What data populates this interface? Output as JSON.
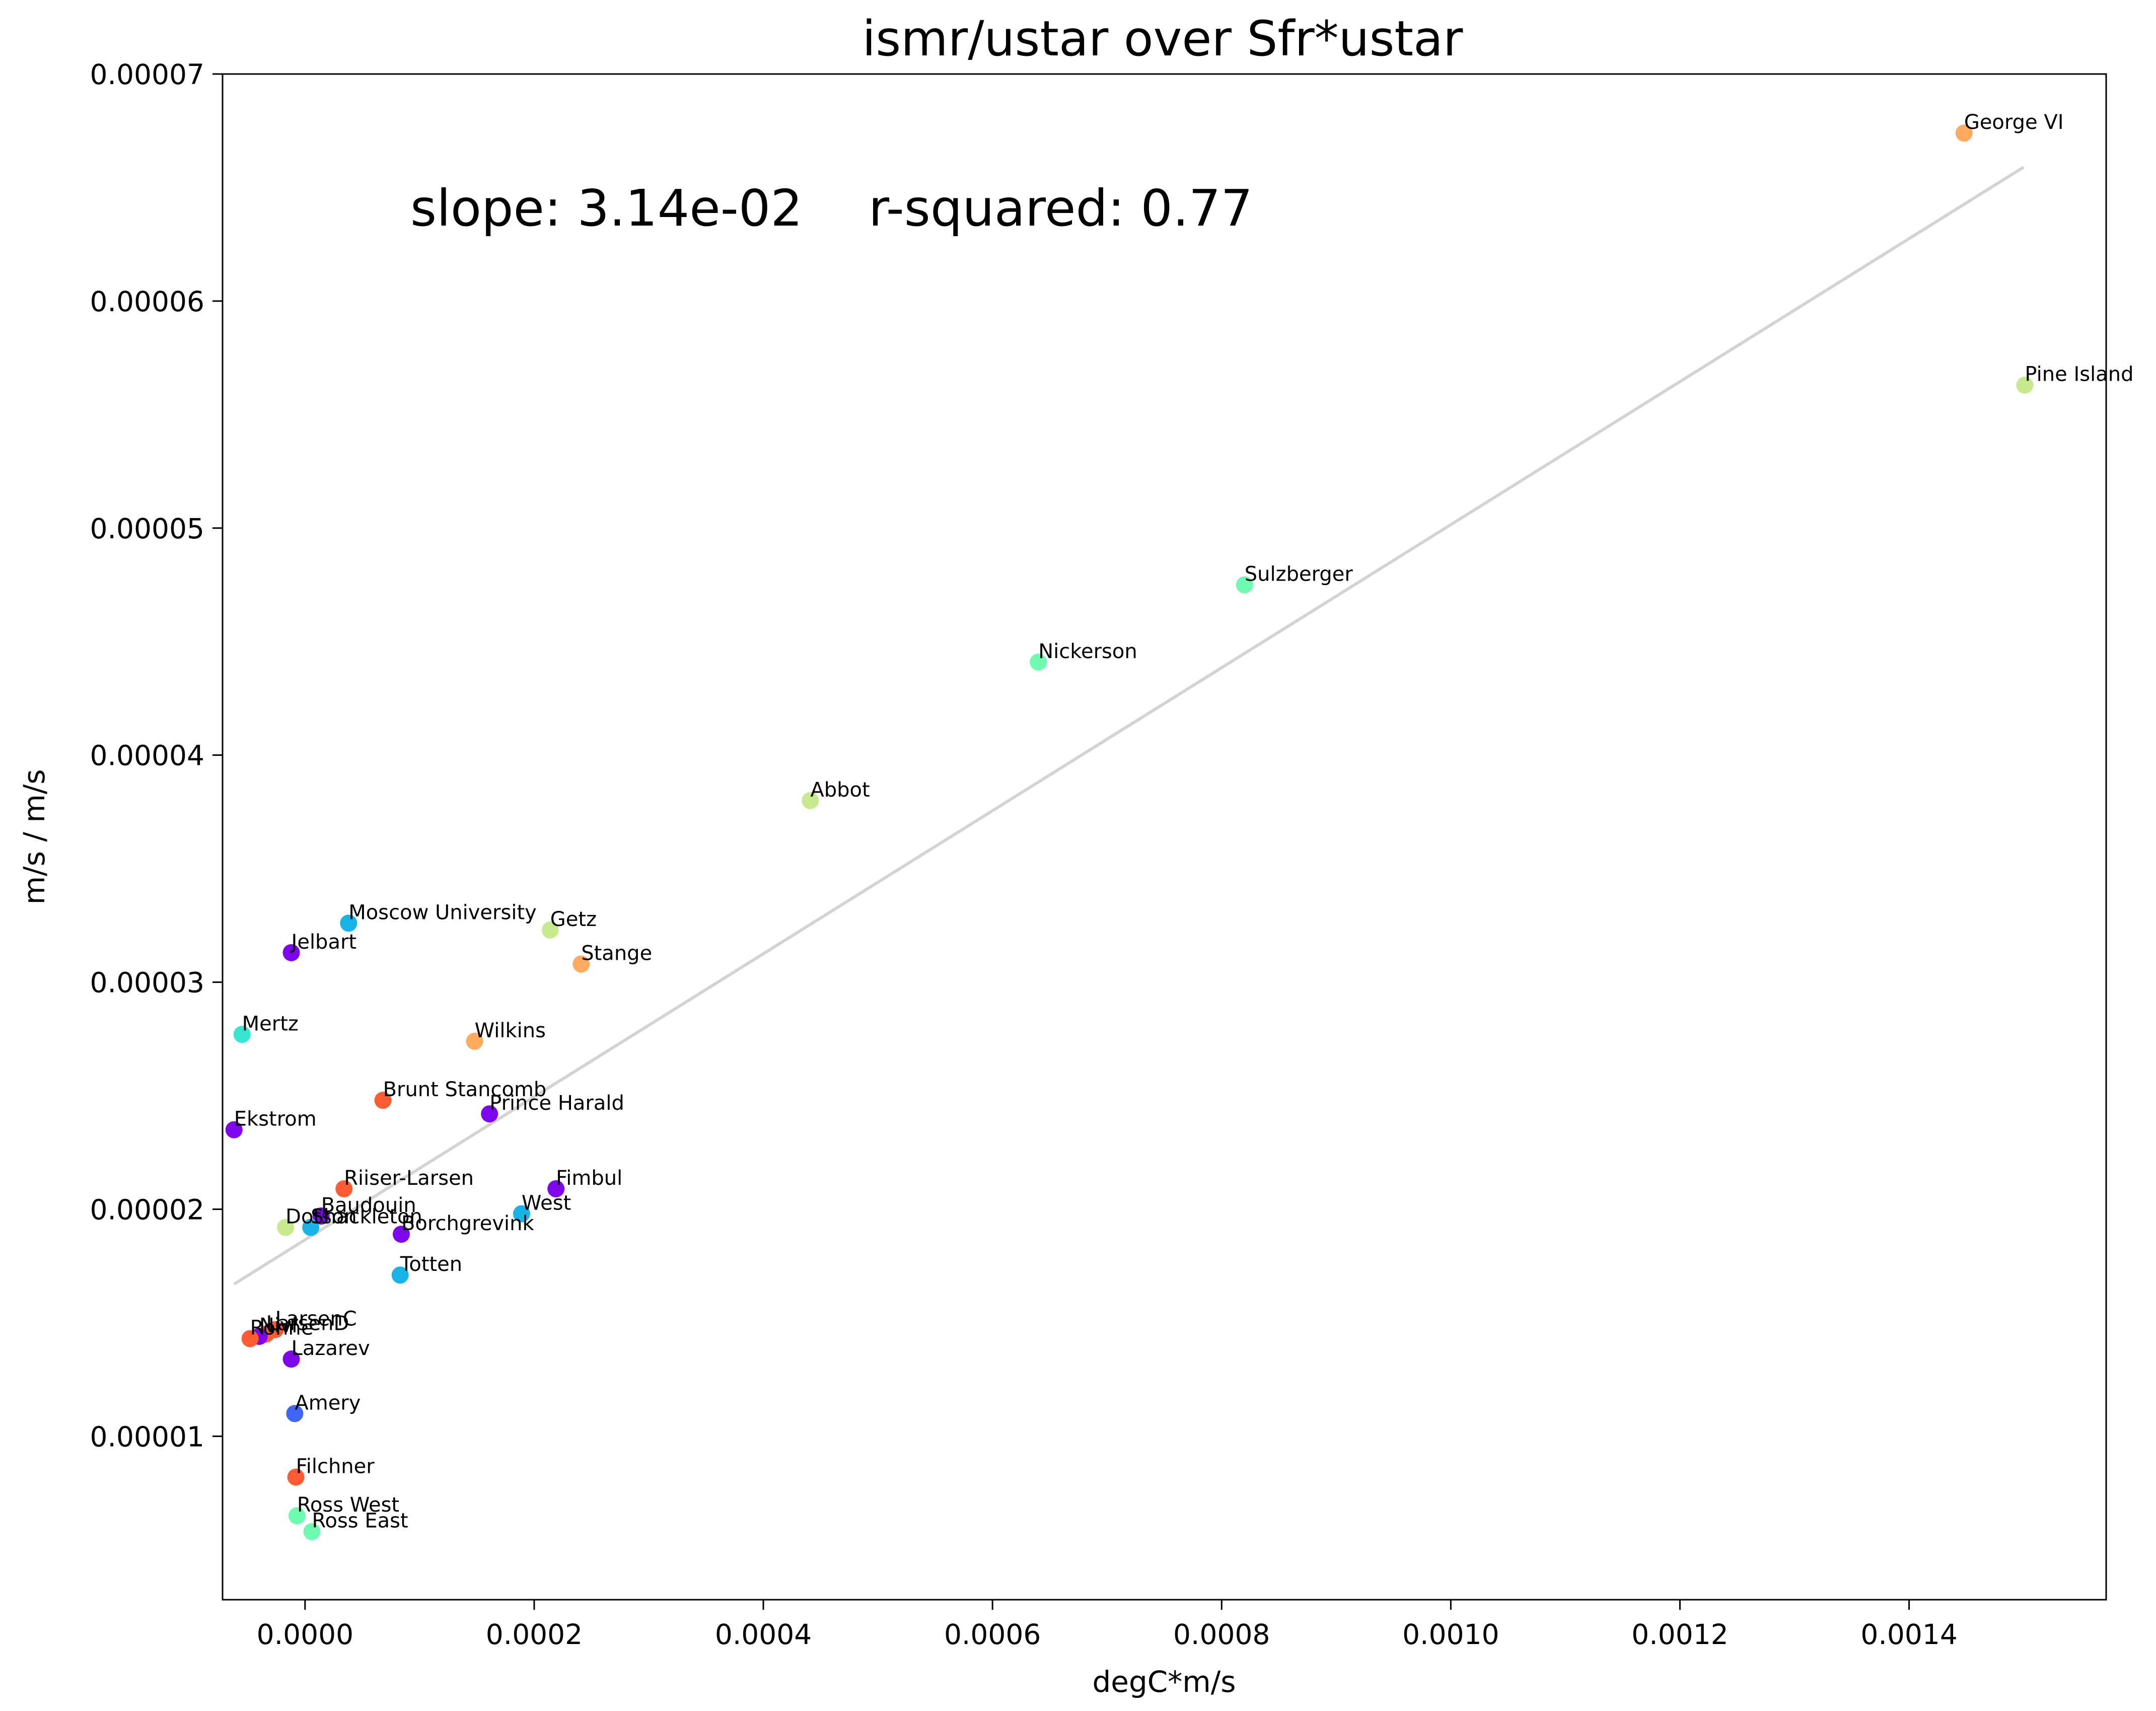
{
  "chart_data": {
    "type": "scatter",
    "title": "ismr/ustar over Sfr*ustar",
    "xlabel": "degC*m/s",
    "ylabel": "m/s / m/s",
    "xlim": [
      -7.2e-05,
      0.001572
    ],
    "ylim": [
      2.8e-06,
      7e-05
    ],
    "x_ticks": [
      0.0,
      0.0002,
      0.0004,
      0.0006,
      0.0008,
      0.001,
      0.0012,
      0.0014
    ],
    "x_tick_labels": [
      "0.0000",
      "0.0002",
      "0.0004",
      "0.0006",
      "0.0008",
      "0.0010",
      "0.0012",
      "0.0014"
    ],
    "y_ticks": [
      1e-05,
      2e-05,
      3e-05,
      4e-05,
      5e-05,
      6e-05,
      7e-05
    ],
    "y_tick_labels": [
      "0.00001",
      "0.00002",
      "0.00003",
      "0.00004",
      "0.00005",
      "0.00006",
      "0.00007"
    ],
    "grid": false,
    "annotations": {
      "slope": "slope: 3.14e-02",
      "r_squared": "r-squared: 0.77"
    },
    "fit_line": {
      "color": "#d3d3d3",
      "x": [
        -6.2e-05,
        0.0015
      ],
      "y": [
        1.67e-05,
        6.59e-05
      ]
    },
    "points": [
      {
        "name": "George VI",
        "x": 0.001448,
        "y": 6.74e-05,
        "color": "#ffaa5e"
      },
      {
        "name": "Pine Island",
        "x": 0.001501,
        "y": 5.63e-05,
        "color": "#c7ea8e"
      },
      {
        "name": "Sulzberger",
        "x": 0.00082,
        "y": 4.75e-05,
        "color": "#6ffbb0"
      },
      {
        "name": "Nickerson",
        "x": 0.00064,
        "y": 4.41e-05,
        "color": "#6ffbb0"
      },
      {
        "name": "Abbot",
        "x": 0.000441,
        "y": 3.8e-05,
        "color": "#c7ea8e"
      },
      {
        "name": "Moscow University",
        "x": 3.8e-05,
        "y": 3.26e-05,
        "color": "#19b3e5"
      },
      {
        "name": "Getz",
        "x": 0.000214,
        "y": 3.23e-05,
        "color": "#c7ea8e"
      },
      {
        "name": "Jelbart",
        "x": -1.2e-05,
        "y": 3.13e-05,
        "color": "#7d06ed"
      },
      {
        "name": "Stange",
        "x": 0.000241,
        "y": 3.08e-05,
        "color": "#ffaa5e"
      },
      {
        "name": "Mertz",
        "x": -5.5e-05,
        "y": 2.77e-05,
        "color": "#36e6d0"
      },
      {
        "name": "Wilkins",
        "x": 0.000148,
        "y": 2.74e-05,
        "color": "#ffaa5e"
      },
      {
        "name": "Brunt Stancomb",
        "x": 6.8e-05,
        "y": 2.48e-05,
        "color": "#ff5c33"
      },
      {
        "name": "Prince Harald",
        "x": 0.000161,
        "y": 2.42e-05,
        "color": "#7d06ed"
      },
      {
        "name": "Ekstrom",
        "x": -6.2e-05,
        "y": 2.35e-05,
        "color": "#7d06ed"
      },
      {
        "name": "Riiser-Larsen",
        "x": 3.4e-05,
        "y": 2.09e-05,
        "color": "#ff5c33"
      },
      {
        "name": "Fimbul",
        "x": 0.000219,
        "y": 2.09e-05,
        "color": "#7d06ed"
      },
      {
        "name": "West",
        "x": 0.000189,
        "y": 1.98e-05,
        "color": "#19b3e5"
      },
      {
        "name": "Baudouin",
        "x": 1.4e-05,
        "y": 1.97e-05,
        "color": "#7d06ed"
      },
      {
        "name": "Dotson",
        "x": -1.7e-05,
        "y": 1.92e-05,
        "color": "#c7ea8e"
      },
      {
        "name": "Shackleton",
        "x": 5e-06,
        "y": 1.92e-05,
        "color": "#19b3e5"
      },
      {
        "name": "Borchgrevink",
        "x": 8.4e-05,
        "y": 1.89e-05,
        "color": "#7d06ed"
      },
      {
        "name": "Totten",
        "x": 8.3e-05,
        "y": 1.71e-05,
        "color": "#19b3e5"
      },
      {
        "name": "LarsenC",
        "x": -2.6e-05,
        "y": 1.47e-05,
        "color": "#ff5c33"
      },
      {
        "name": "LarsenD",
        "x": -3.4e-05,
        "y": 1.45e-05,
        "color": "#ff5c33"
      },
      {
        "name": "Nivl",
        "x": -4e-05,
        "y": 1.44e-05,
        "color": "#7d06ed"
      },
      {
        "name": "Ronne",
        "x": -4.8e-05,
        "y": 1.43e-05,
        "color": "#ff5c33"
      },
      {
        "name": "Lazarev",
        "x": -1.2e-05,
        "y": 1.34e-05,
        "color": "#7d06ed"
      },
      {
        "name": "Amery",
        "x": -9e-06,
        "y": 1.1e-05,
        "color": "#4066f8"
      },
      {
        "name": "Filchner",
        "x": -8e-06,
        "y": 8.2e-06,
        "color": "#ff5c33"
      },
      {
        "name": "Ross West",
        "x": -7e-06,
        "y": 6.5e-06,
        "color": "#6ffbb0"
      },
      {
        "name": "Ross East",
        "x": 6e-06,
        "y": 5.8e-06,
        "color": "#6ffbb0"
      }
    ]
  }
}
